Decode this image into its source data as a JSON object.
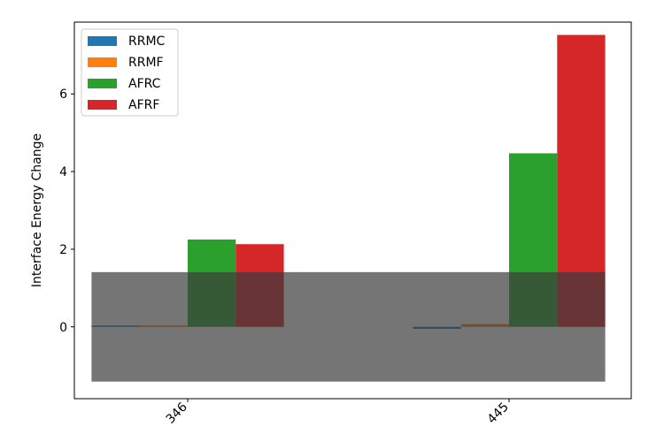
{
  "chart_data": {
    "type": "bar",
    "categories": [
      "346",
      "445"
    ],
    "ylabel": "Interface Energy Change",
    "xlabel": "",
    "ylim": [
      -1.85,
      7.85
    ],
    "yticks": [
      0,
      2,
      4,
      6
    ],
    "series": [
      {
        "name": "RRMC",
        "color": "#1f77b4",
        "values": [
          0.0,
          -0.05
        ]
      },
      {
        "name": "RRMF",
        "color": "#ff7f0e",
        "values": [
          0.02,
          0.07
        ]
      },
      {
        "name": "AFRC",
        "color": "#2ca02c",
        "values": [
          2.25,
          4.47
        ]
      },
      {
        "name": "AFRF",
        "color": "#d62728",
        "values": [
          2.13,
          7.52
        ]
      }
    ],
    "shaded_band": {
      "y_range": [
        -1.41,
        1.41
      ],
      "color": "#3a3a3a",
      "opacity": 0.7
    },
    "legend_position": "upper-left",
    "grid": false
  }
}
